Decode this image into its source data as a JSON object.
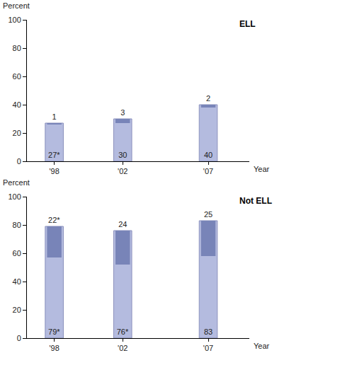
{
  "chart_data": [
    {
      "type": "bar",
      "title": "ELL",
      "x_label": "Year",
      "y_label": "Percent",
      "x": [
        1998,
        2002,
        2007
      ],
      "xlim": [
        1996.4,
        2009.4
      ],
      "xticks": [
        {
          "value": 1998,
          "label": "'98"
        },
        {
          "value": 2002,
          "label": "'02"
        },
        {
          "value": 2007,
          "label": "'07"
        }
      ],
      "ylim": [
        0,
        100
      ],
      "yticks": [
        0,
        20,
        40,
        60,
        80,
        100
      ],
      "grid": false,
      "data_labels": true,
      "series": [
        {
          "color": "#b4bbdf",
          "values": [
            27,
            30,
            40
          ],
          "value_labels": [
            "27*",
            "30",
            "40"
          ]
        },
        {
          "color": "#7884b8",
          "values": [
            1,
            3,
            2
          ],
          "value_labels": [
            "1",
            "3",
            "2"
          ]
        }
      ]
    },
    {
      "type": "bar",
      "title": "Not ELL",
      "x_label": "Year",
      "y_label": "Percent",
      "x": [
        1998,
        2002,
        2007
      ],
      "xlim": [
        1996.4,
        2009.4
      ],
      "xticks": [
        {
          "value": 1998,
          "label": "'98"
        },
        {
          "value": 2002,
          "label": "'02"
        },
        {
          "value": 2007,
          "label": "'07"
        }
      ],
      "ylim": [
        0,
        100
      ],
      "yticks": [
        0,
        20,
        40,
        60,
        80,
        100
      ],
      "grid": false,
      "data_labels": true,
      "series": [
        {
          "color": "#b4bbdf",
          "values": [
            79,
            76,
            83
          ],
          "value_labels": [
            "79*",
            "76*",
            "83"
          ]
        },
        {
          "color": "#7884b8",
          "values": [
            22,
            24,
            25
          ],
          "value_labels": [
            "22*",
            "24",
            "25"
          ]
        }
      ]
    }
  ]
}
